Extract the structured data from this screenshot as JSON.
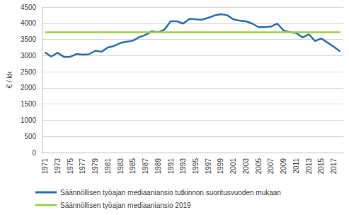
{
  "chart_data": {
    "type": "line",
    "ylabel": "€ / kk",
    "categories": [
      "1971",
      null,
      "1973",
      null,
      "1975",
      null,
      "1977",
      null,
      "1979",
      null,
      "1981",
      null,
      "1983",
      null,
      "1985",
      null,
      "1987",
      null,
      "1989",
      null,
      "1991",
      null,
      "1993",
      null,
      "1995",
      null,
      "1997",
      null,
      "1999",
      null,
      "2001",
      null,
      "2003",
      null,
      "2005",
      null,
      "2007",
      null,
      "2009",
      null,
      "2011",
      null,
      "2013",
      null,
      "2015",
      null,
      "2017",
      null
    ],
    "series": [
      {
        "name": "Säännöllisen työajan mediaaniansio tutkinnon suoritusvuoden mukaan",
        "color": "#2a72b0",
        "values": [
          3100,
          2970,
          3090,
          2960,
          2960,
          3050,
          3030,
          3040,
          3150,
          3120,
          3250,
          3300,
          3390,
          3430,
          3460,
          3570,
          3640,
          3750,
          3720,
          3800,
          4060,
          4060,
          3990,
          4140,
          4120,
          4110,
          4170,
          4240,
          4280,
          4250,
          4120,
          4080,
          4060,
          3990,
          3880,
          3880,
          3900,
          3990,
          3770,
          3720,
          3700,
          3560,
          3660,
          3450,
          3530,
          3400,
          3270,
          3130
        ]
      },
      {
        "name": "Säännöllisen työajan mediaaniansio 2019",
        "color": "#9ed04a",
        "values": [
          3720,
          3720,
          3720,
          3720,
          3720,
          3720,
          3720,
          3720,
          3720,
          3720,
          3720,
          3720,
          3720,
          3720,
          3720,
          3720,
          3720,
          3720,
          3720,
          3720,
          3720,
          3720,
          3720,
          3720,
          3720,
          3720,
          3720,
          3720,
          3720,
          3720,
          3720,
          3720,
          3720,
          3720,
          3720,
          3720,
          3720,
          3720,
          3720,
          3720,
          3720,
          3720,
          3720,
          3720,
          3720,
          3720,
          3720,
          3720
        ]
      }
    ],
    "ylim": [
      0,
      4500
    ],
    "yticks": [
      0,
      500,
      1000,
      1500,
      2000,
      2500,
      3000,
      3500,
      4000,
      4500
    ],
    "grid": true,
    "legend": "bottom"
  }
}
